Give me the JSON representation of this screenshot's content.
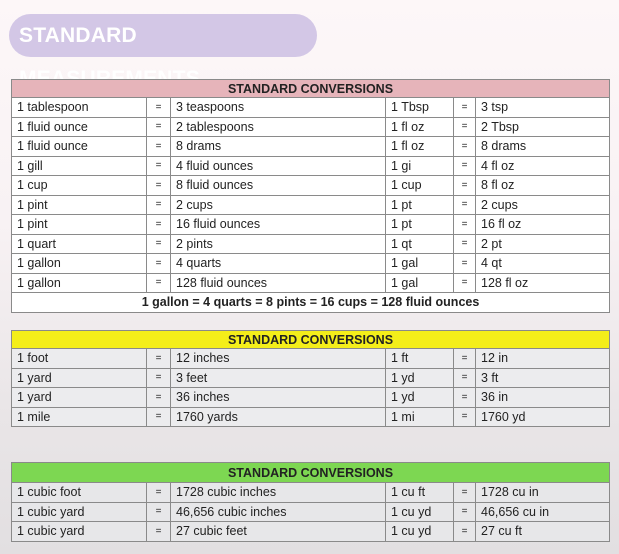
{
  "title": "STANDARD MEASUREMENTS",
  "tables": [
    {
      "header": "STANDARD CONVERSIONS",
      "header_color": "#e6b4ba",
      "rows": [
        [
          "1 tablespoon",
          "=",
          "3 teaspoons",
          "1 Tbsp",
          "=",
          "3 tsp"
        ],
        [
          "1 fluid ounce",
          "=",
          "2 tablespoons",
          "1 fl oz",
          "=",
          "2 Tbsp"
        ],
        [
          "1 fluid ounce",
          "=",
          "8 drams",
          "1 fl oz",
          "=",
          "8 drams"
        ],
        [
          "1 gill",
          "=",
          "4 fluid ounces",
          "1 gi",
          "=",
          "4 fl oz"
        ],
        [
          "1 cup",
          "=",
          "8 fluid ounces",
          "1 cup",
          "=",
          "8 fl oz"
        ],
        [
          "1 pint",
          "=",
          "2 cups",
          "1 pt",
          "=",
          "2 cups"
        ],
        [
          "1 pint",
          "=",
          "16 fluid ounces",
          "1 pt",
          "=",
          "16 fl oz"
        ],
        [
          "1 quart",
          "=",
          "2 pints",
          "1 qt",
          "=",
          "2 pt"
        ],
        [
          "1 gallon",
          "=",
          "4 quarts",
          "1 gal",
          "=",
          "4 qt"
        ],
        [
          "1 gallon",
          "=",
          "128 fluid ounces",
          "1 gal",
          "=",
          "128 fl oz"
        ]
      ],
      "footer": "1 gallon = 4 quarts = 8 pints = 16 cups = 128 fluid ounces"
    },
    {
      "header": "STANDARD CONVERSIONS",
      "header_color": "#f4ee1a",
      "rows": [
        [
          "1 foot",
          "=",
          "12 inches",
          "1 ft",
          "=",
          "12 in"
        ],
        [
          "1 yard",
          "=",
          "3 feet",
          "1 yd",
          "=",
          "3 ft"
        ],
        [
          "1 yard",
          "=",
          "36 inches",
          "1 yd",
          "=",
          "36 in"
        ],
        [
          "1 mile",
          "=",
          "1760 yards",
          "1 mi",
          "=",
          "1760 yd"
        ]
      ]
    },
    {
      "header": "STANDARD CONVERSIONS",
      "header_color": "#7dd752",
      "rows": [
        [
          "1 cubic foot",
          "=",
          "1728 cubic inches",
          "1 cu ft",
          "=",
          "1728 cu in"
        ],
        [
          "1 cubic yard",
          "=",
          "46,656 cubic inches",
          "1 cu yd",
          "=",
          "46,656 cu in"
        ],
        [
          "1 cubic yard",
          "=",
          "27 cubic feet",
          "1 cu yd",
          "=",
          "27 cu ft"
        ]
      ]
    }
  ]
}
